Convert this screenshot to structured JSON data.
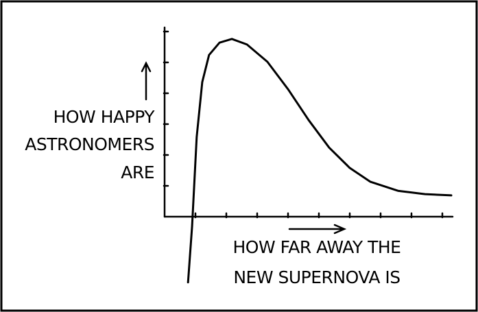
{
  "chart_data": {
    "type": "line",
    "ylabel": [
      "HOW HAPPY",
      "ASTRONOMERS",
      "ARE"
    ],
    "xlabel": [
      "HOW FAR AWAY THE",
      "NEW SUPERNOVA IS"
    ],
    "x": [
      0.76,
      0.89,
      1.04,
      1.22,
      1.44,
      1.78,
      2.18,
      2.67,
      3.33,
      4,
      4.67,
      5.33,
      6,
      6.67,
      7.56,
      8.44,
      9.29
    ],
    "series": [
      {
        "color": "#000000",
        "values": [
          -2.13,
          -0.31,
          2.58,
          4.36,
          5.24,
          5.64,
          5.76,
          5.58,
          5.02,
          4.13,
          3.13,
          2.24,
          1.58,
          1.13,
          0.84,
          0.73,
          0.69
        ]
      }
    ],
    "xlim": [
      0,
      9.4
    ],
    "ylim": [
      -2.2,
      6.2
    ],
    "xticks": [
      1,
      2,
      3,
      4,
      5,
      6,
      7,
      8,
      9
    ],
    "yticks": [
      1,
      2,
      3,
      4,
      5,
      6
    ],
    "grid": false
  }
}
